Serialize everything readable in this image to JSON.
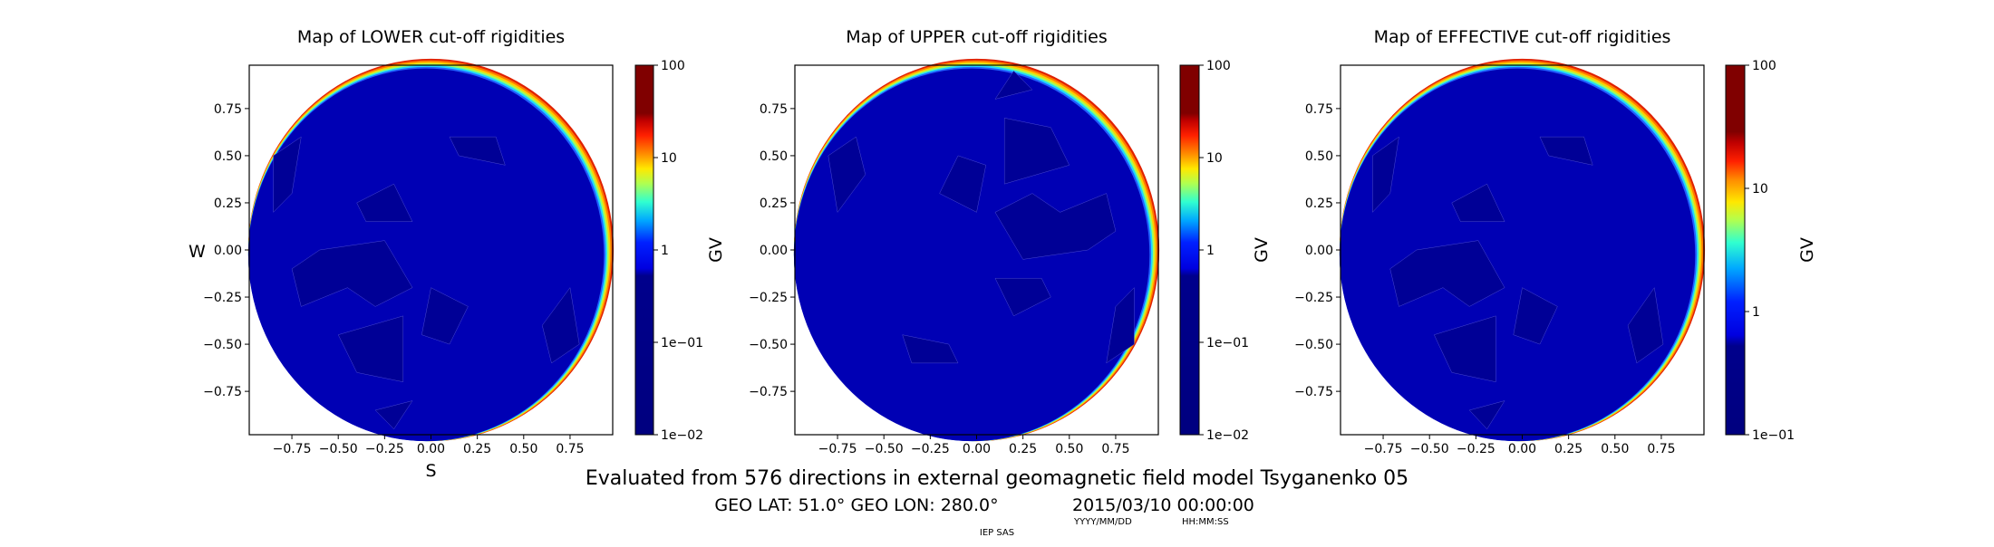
{
  "chart_data": [
    {
      "type": "heatmap",
      "title": "Map of LOWER cut-off rigidities",
      "xlabel": "S",
      "ylabel": "W",
      "xlim": [
        -0.98,
        0.98
      ],
      "ylim": [
        -0.98,
        0.98
      ],
      "xticks": [
        "−0.75",
        "−0.50",
        "−0.25",
        "0.00",
        "0.25",
        "0.50",
        "0.75"
      ],
      "yticks": [
        "0.75",
        "0.50",
        "0.25",
        "0.00",
        "−0.25",
        "−0.50",
        "−0.75"
      ],
      "colorbar": {
        "label": "GV",
        "scale": "log",
        "range": [
          0.01,
          100
        ],
        "ticks": [
          "100",
          "10",
          "1",
          "1e−01",
          "1e−02"
        ]
      },
      "colormap": "jet"
    },
    {
      "type": "heatmap",
      "title": "Map of UPPER cut-off rigidities",
      "xlabel": "",
      "ylabel": "",
      "xlim": [
        -0.98,
        0.98
      ],
      "ylim": [
        -0.98,
        0.98
      ],
      "xticks": [
        "−0.75",
        "−0.50",
        "−0.25",
        "0.00",
        "0.25",
        "0.50",
        "0.75"
      ],
      "yticks": [
        "0.75",
        "0.50",
        "0.25",
        "0.00",
        "−0.25",
        "−0.50",
        "−0.75"
      ],
      "colorbar": {
        "label": "GV",
        "scale": "log",
        "range": [
          0.01,
          100
        ],
        "ticks": [
          "100",
          "10",
          "1",
          "1e−01",
          "1e−02"
        ]
      },
      "colormap": "jet"
    },
    {
      "type": "heatmap",
      "title": "Map of EFFECTIVE cut-off rigidities",
      "xlabel": "",
      "ylabel": "",
      "xlim": [
        -0.98,
        0.98
      ],
      "ylim": [
        -0.98,
        0.98
      ],
      "xticks": [
        "−0.75",
        "−0.50",
        "−0.25",
        "0.00",
        "0.25",
        "0.50",
        "0.75"
      ],
      "yticks": [
        "0.75",
        "0.50",
        "0.25",
        "0.00",
        "−0.25",
        "−0.50",
        "−0.75"
      ],
      "colorbar": {
        "label": "GV",
        "scale": "log",
        "range": [
          0.1,
          100
        ],
        "ticks": [
          "100",
          "10",
          "1",
          "1e−01"
        ]
      },
      "colormap": "jet"
    }
  ],
  "footer": {
    "suptitle": "Evaluated from 576 directions in external geomagnetic field model Tsyganenko 05",
    "location": "GEO LAT: 51.0°  GEO LON: 280.0°",
    "datetime": "2015/03/10 00:00:00",
    "date_format": "YYYY/MM/DD",
    "time_format": "HH:MM:SS",
    "credit": "IEP SAS"
  },
  "colors": {
    "field": "#0000b4",
    "field_dark": "#000096",
    "rim": [
      "#ff7a00",
      "#ffd000",
      "#9cff60",
      "#20d8ff",
      "#2060ff"
    ]
  }
}
